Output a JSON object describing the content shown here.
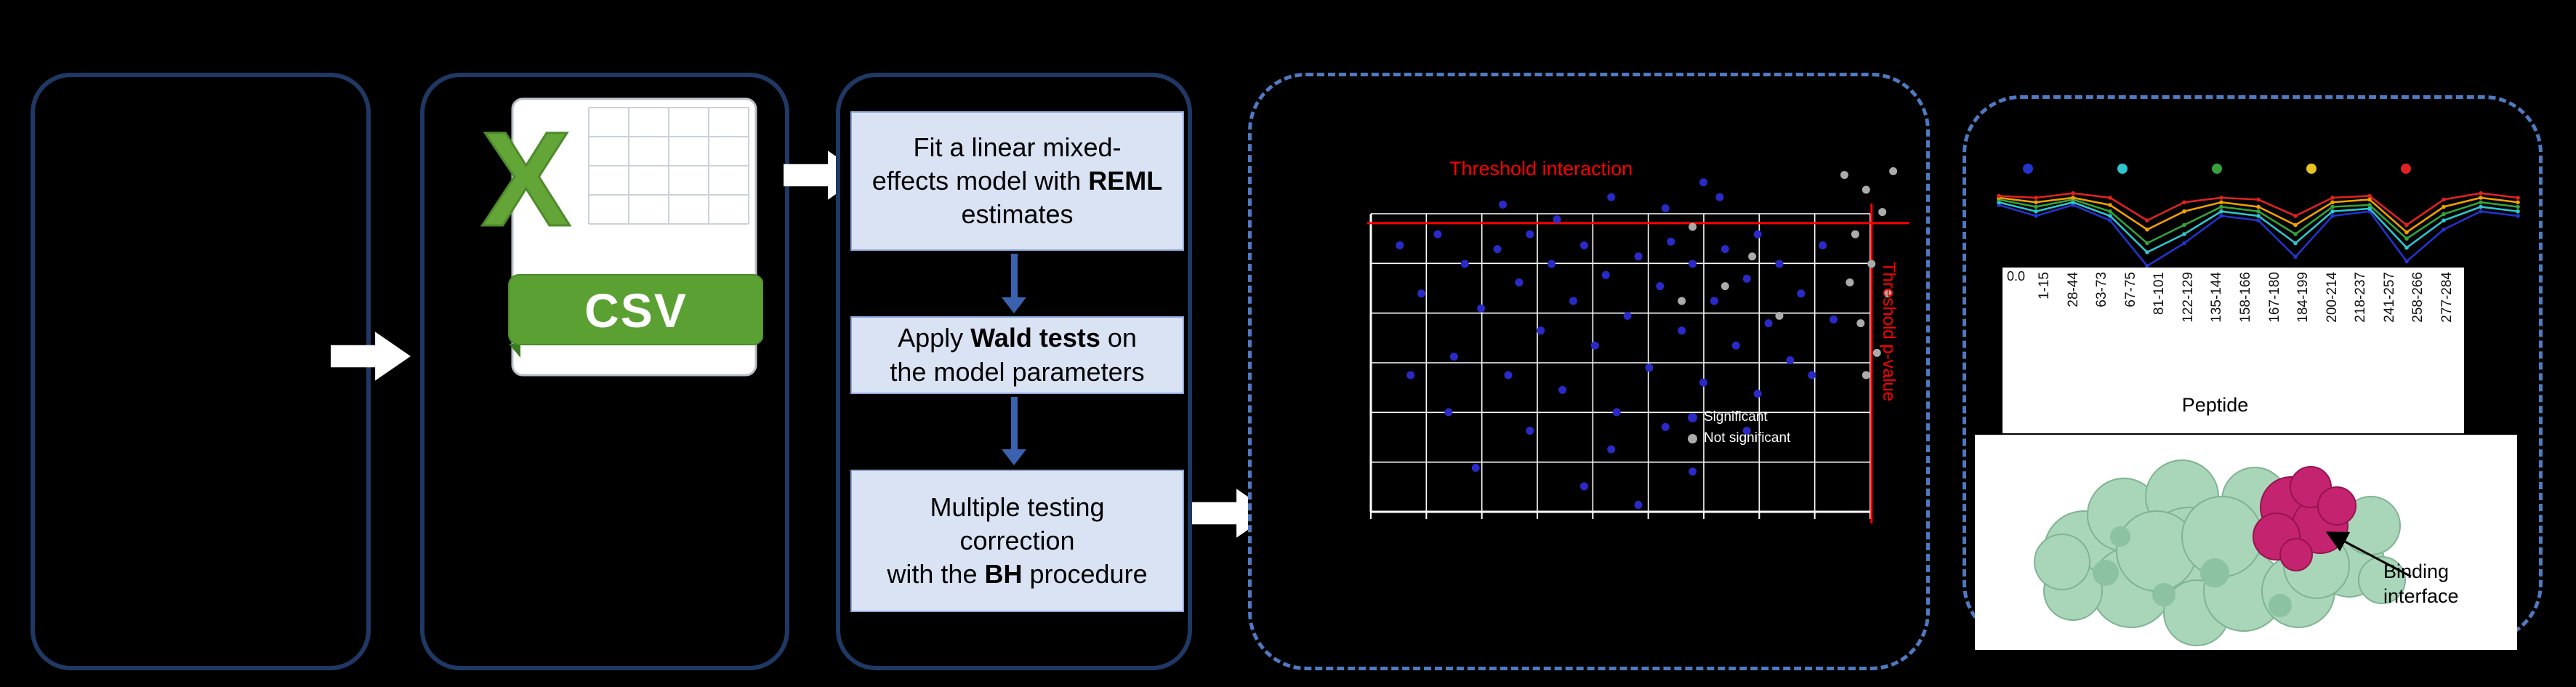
{
  "colors": {
    "background": "#000000",
    "panel_border": "#1F3864",
    "dashed_border": "#4F7AC2",
    "step_fill": "#DAE3F3",
    "step_border": "#8CA6D8",
    "flow_arrow": "#FFFFFF",
    "down_arrow": "#3A62AE",
    "threshold_red": "#FF0000",
    "csv_green": "#63A537",
    "protein_green": "#A9D5B9",
    "binding_magenta": "#C4246F"
  },
  "csv": {
    "x_label": "X",
    "banner_label": "CSV"
  },
  "pipeline": {
    "steps": [
      {
        "pre": "Fit a linear mixed-\neffects model with ",
        "bold": "REML",
        "post": " estimates"
      },
      {
        "pre": "Apply ",
        "bold": "Wald tests",
        "post": " on\nthe model parameters"
      },
      {
        "pre": "Multiple testing\ncorrection\nwith the ",
        "bold": "BH",
        "post": " procedure"
      }
    ]
  },
  "structure": {
    "binding_label": "Binding interface",
    "protein_color": "#A9D5B9",
    "interface_color": "#C4246F"
  },
  "chart_data": [
    {
      "type": "scatter",
      "title": "",
      "threshold_labels": {
        "top": "Threshold interaction",
        "right": "Threshold p-value"
      },
      "thresholds": {
        "h_frac": 0.19,
        "v_frac": 0.93
      },
      "grid": {
        "v": 10,
        "h": 7
      },
      "legend": [
        {
          "label": "Significant",
          "color": "#2A2AC8"
        },
        {
          "label": "Not significant",
          "color": "#ABABAB"
        }
      ],
      "series": [
        {
          "name": "significant",
          "color": "#2A2AC8",
          "points": [
            [
              0.06,
              0.25
            ],
            [
              0.1,
              0.38
            ],
            [
              0.13,
              0.22
            ],
            [
              0.16,
              0.55
            ],
            [
              0.18,
              0.3
            ],
            [
              0.21,
              0.42
            ],
            [
              0.24,
              0.26
            ],
            [
              0.26,
              0.6
            ],
            [
              0.28,
              0.35
            ],
            [
              0.3,
              0.22
            ],
            [
              0.32,
              0.48
            ],
            [
              0.34,
              0.3
            ],
            [
              0.36,
              0.64
            ],
            [
              0.38,
              0.4
            ],
            [
              0.4,
              0.25
            ],
            [
              0.42,
              0.52
            ],
            [
              0.44,
              0.33
            ],
            [
              0.46,
              0.7
            ],
            [
              0.48,
              0.44
            ],
            [
              0.5,
              0.28
            ],
            [
              0.52,
              0.58
            ],
            [
              0.54,
              0.36
            ],
            [
              0.56,
              0.24
            ],
            [
              0.58,
              0.48
            ],
            [
              0.6,
              0.3
            ],
            [
              0.62,
              0.62
            ],
            [
              0.64,
              0.4
            ],
            [
              0.66,
              0.26
            ],
            [
              0.68,
              0.52
            ],
            [
              0.7,
              0.34
            ],
            [
              0.72,
              0.22
            ],
            [
              0.74,
              0.46
            ],
            [
              0.76,
              0.3
            ],
            [
              0.78,
              0.56
            ],
            [
              0.8,
              0.38
            ],
            [
              0.45,
              0.12
            ],
            [
              0.55,
              0.15
            ],
            [
              0.35,
              0.18
            ],
            [
              0.25,
              0.14
            ],
            [
              0.65,
              0.12
            ],
            [
              0.15,
              0.7
            ],
            [
              0.3,
              0.75
            ],
            [
              0.45,
              0.8
            ],
            [
              0.55,
              0.74
            ],
            [
              0.2,
              0.85
            ],
            [
              0.4,
              0.9
            ],
            [
              0.6,
              0.86
            ],
            [
              0.5,
              0.95
            ],
            [
              0.7,
              0.75
            ],
            [
              0.08,
              0.6
            ],
            [
              0.84,
              0.25
            ],
            [
              0.86,
              0.45
            ],
            [
              0.82,
              0.6
            ],
            [
              0.62,
              0.08
            ],
            [
              0.72,
              0.65
            ]
          ]
        },
        {
          "name": "not_significant",
          "color": "#ABABAB",
          "points": [
            [
              0.88,
              0.06
            ],
            [
              0.92,
              0.1
            ],
            [
              0.95,
              0.16
            ],
            [
              0.9,
              0.22
            ],
            [
              0.93,
              0.3
            ],
            [
              0.96,
              0.38
            ],
            [
              0.91,
              0.46
            ],
            [
              0.94,
              0.54
            ],
            [
              0.89,
              0.35
            ],
            [
              0.92,
              0.6
            ],
            [
              0.6,
              0.2
            ],
            [
              0.66,
              0.36
            ],
            [
              0.71,
              0.28
            ],
            [
              0.76,
              0.44
            ],
            [
              0.58,
              0.4
            ],
            [
              0.97,
              0.05
            ]
          ]
        }
      ]
    },
    {
      "type": "line",
      "categories": [
        "1-15",
        "28-44",
        "63-73",
        "67-75",
        "81-101",
        "122-129",
        "135-144",
        "158-166",
        "167-180",
        "184-199",
        "200-214",
        "218-237",
        "241-257",
        "258-266",
        "277-284"
      ],
      "xlabel": "Peptide",
      "y_tick_label": "0.0",
      "ylim": [
        0,
        1
      ],
      "legend_dot_colors": [
        "#2333CC",
        "#2FC5CE",
        "#35A23C",
        "#E8C222",
        "#E02222"
      ],
      "series": [
        {
          "name": "blue",
          "color": "#2333CC",
          "values": [
            0.72,
            0.6,
            0.72,
            0.55,
            0.05,
            0.3,
            0.6,
            0.55,
            0.15,
            0.6,
            0.65,
            0.1,
            0.45,
            0.65,
            0.6
          ]
        },
        {
          "name": "cyan",
          "color": "#2FC5CE",
          "values": [
            0.75,
            0.65,
            0.75,
            0.6,
            0.2,
            0.4,
            0.65,
            0.6,
            0.3,
            0.65,
            0.68,
            0.25,
            0.55,
            0.7,
            0.65
          ]
        },
        {
          "name": "green",
          "color": "#35A23C",
          "values": [
            0.78,
            0.7,
            0.78,
            0.65,
            0.3,
            0.5,
            0.7,
            0.65,
            0.4,
            0.7,
            0.72,
            0.35,
            0.62,
            0.75,
            0.7
          ]
        },
        {
          "name": "yellow",
          "color": "#F0A000",
          "values": [
            0.8,
            0.75,
            0.8,
            0.72,
            0.45,
            0.65,
            0.75,
            0.7,
            0.5,
            0.75,
            0.78,
            0.42,
            0.7,
            0.8,
            0.75
          ]
        },
        {
          "name": "red",
          "color": "#E02222",
          "values": [
            0.82,
            0.8,
            0.85,
            0.8,
            0.55,
            0.75,
            0.8,
            0.78,
            0.6,
            0.8,
            0.82,
            0.5,
            0.78,
            0.85,
            0.8
          ]
        }
      ]
    }
  ]
}
